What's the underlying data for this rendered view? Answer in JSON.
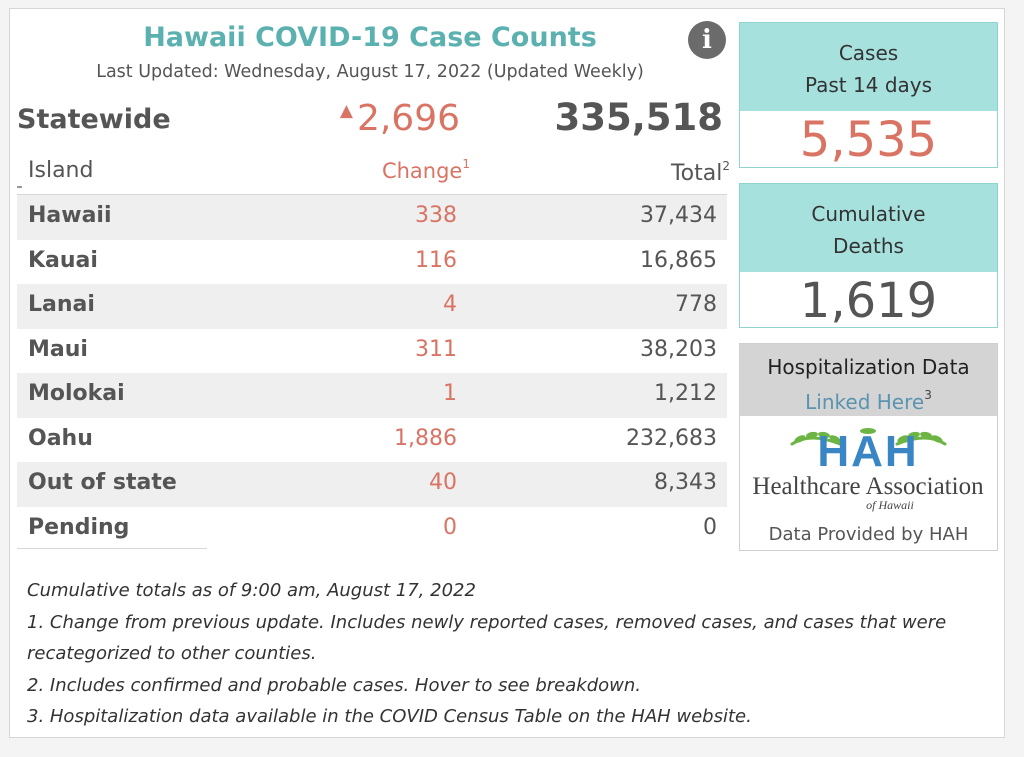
{
  "header": {
    "title": "Hawaii COVID-19 Case Counts",
    "last_updated": "Last Updated: Wednesday, August 17, 2022 (Updated Weekly)",
    "info_icon": "info-icon",
    "info_glyph": "i"
  },
  "statewide": {
    "label": "Statewide",
    "change": "2,696",
    "change_arrow": "▲",
    "total": "335,518"
  },
  "table": {
    "headers": {
      "island": "Island",
      "change": "Change",
      "change_sup": "1",
      "total": "Total",
      "total_sup": "2"
    },
    "rows": [
      {
        "name": "Hawaii",
        "change": "338",
        "total": "37,434"
      },
      {
        "name": "Kauai",
        "change": "116",
        "total": "16,865"
      },
      {
        "name": "Lanai",
        "change": "4",
        "total": "778"
      },
      {
        "name": "Maui",
        "change": "311",
        "total": "38,203"
      },
      {
        "name": "Molokai",
        "change": "1",
        "total": "1,212"
      },
      {
        "name": "Oahu",
        "change": "1,886",
        "total": "232,683"
      },
      {
        "name": "Out of state",
        "change": "40",
        "total": "8,343"
      },
      {
        "name": "Pending",
        "change": "0",
        "total": "0"
      }
    ]
  },
  "cards": {
    "cases": {
      "line1": "Cases",
      "line2": "Past 14 days",
      "value": "5,535"
    },
    "deaths": {
      "line1": "Cumulative",
      "line2": "Deaths",
      "value": "1,619"
    }
  },
  "hospitalization": {
    "title": "Hospitalization Data",
    "link": "Linked Here",
    "link_sup": "3",
    "logo_acronym": "HAH",
    "logo_name": "Healthcare Association",
    "logo_sub": "of Hawaii",
    "provided_by": "Data Provided by HAH"
  },
  "notes": [
    "Cumulative totals as of 9:00 am, August 17, 2022",
    "1. Change from previous update. Includes newly reported cases, removed cases, and cases that were",
    "recategorized to other counties.",
    "2. Includes confirmed and probable cases. Hover to see breakdown.",
    "3. Hospitalization data available in the COVID Census Table on the HAH website."
  ],
  "colors": {
    "title_teal": "#5bb0b0",
    "change_red": "#d97464",
    "card_header": "#a6e1dd",
    "link_blue": "#5a94b0",
    "logo_blue": "#3a86c4",
    "logo_green": "#6cb544"
  }
}
